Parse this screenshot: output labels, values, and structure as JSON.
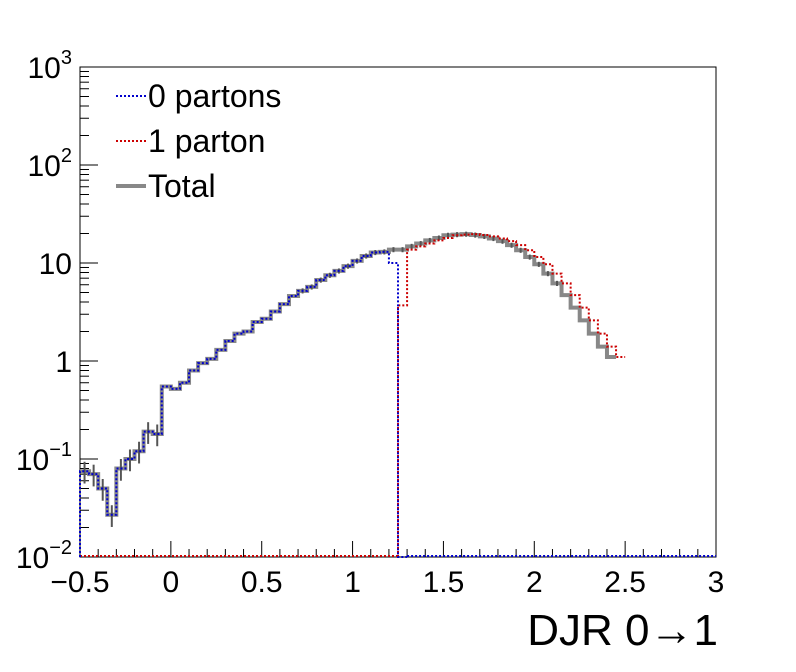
{
  "chart_data": {
    "type": "line",
    "title": "",
    "xlabel": "DJR 0→1",
    "ylabel": "",
    "xlim": [
      -0.5,
      3.0
    ],
    "ylim": [
      0.01,
      1000
    ],
    "yscale": "log",
    "bin_width": 0.05,
    "x_ticks": [
      {
        "value": -0.5,
        "label": "−0.5"
      },
      {
        "value": 0,
        "label": "0"
      },
      {
        "value": 0.5,
        "label": "0.5"
      },
      {
        "value": 1,
        "label": "1"
      },
      {
        "value": 1.5,
        "label": "1.5"
      },
      {
        "value": 2,
        "label": "2"
      },
      {
        "value": 2.5,
        "label": "2.5"
      },
      {
        "value": 3,
        "label": "3"
      }
    ],
    "y_ticks": [
      {
        "value": 0.01,
        "label": "10",
        "exp": "−2"
      },
      {
        "value": 0.1,
        "label": "10",
        "exp": "−1"
      },
      {
        "value": 1,
        "label": "1",
        "exp": ""
      },
      {
        "value": 10,
        "label": "10",
        "exp": ""
      },
      {
        "value": 100,
        "label": "10",
        "exp": "2"
      },
      {
        "value": 1000,
        "label": "10",
        "exp": "3"
      }
    ],
    "legend_position": "top-left",
    "series": [
      {
        "name": "0 partons",
        "color": "#0000cc",
        "style": "dotted",
        "x_start": -0.5,
        "values": [
          0.075,
          0.07,
          0.05,
          0.027,
          0.08,
          0.1,
          0.12,
          0.19,
          0.18,
          0.55,
          0.52,
          0.6,
          0.8,
          0.95,
          1.05,
          1.3,
          1.6,
          1.9,
          2.0,
          2.5,
          2.7,
          3.2,
          3.8,
          4.6,
          5.2,
          5.7,
          6.7,
          7.5,
          8.3,
          9.3,
          10.5,
          11.8,
          12.8,
          13.0,
          10.0,
          0.01
        ]
      },
      {
        "name": "1 parton",
        "color": "#cc0000",
        "style": "dotted",
        "x_start": 1.25,
        "values": [
          3.7,
          13.7,
          14.8,
          15.8,
          17.0,
          18.0,
          19.2,
          19.5,
          19.7,
          19.3,
          18.7,
          17.8,
          16.7,
          15.2,
          13.5,
          11.5,
          9.7,
          7.8,
          6.2,
          4.7,
          3.5,
          2.6,
          1.9,
          1.4,
          1.1
        ]
      },
      {
        "name": "Total",
        "color": "#888888",
        "style": "solid",
        "x_start": -0.5,
        "values": [
          0.075,
          0.07,
          0.05,
          0.027,
          0.08,
          0.1,
          0.12,
          0.19,
          0.18,
          0.55,
          0.52,
          0.6,
          0.8,
          0.95,
          1.05,
          1.3,
          1.6,
          1.9,
          2.0,
          2.5,
          2.7,
          3.2,
          3.8,
          4.6,
          5.2,
          5.7,
          6.7,
          7.5,
          8.3,
          9.3,
          10.5,
          11.8,
          12.8,
          13.0,
          13.7,
          13.7,
          14.8,
          15.8,
          17.0,
          18.0,
          19.2,
          19.5,
          19.7,
          19.3,
          18.7,
          17.8,
          16.7,
          15.2,
          13.5,
          11.5,
          9.7,
          7.8,
          6.2,
          4.7,
          3.5,
          2.6,
          1.9,
          1.4,
          1.1
        ]
      }
    ]
  }
}
